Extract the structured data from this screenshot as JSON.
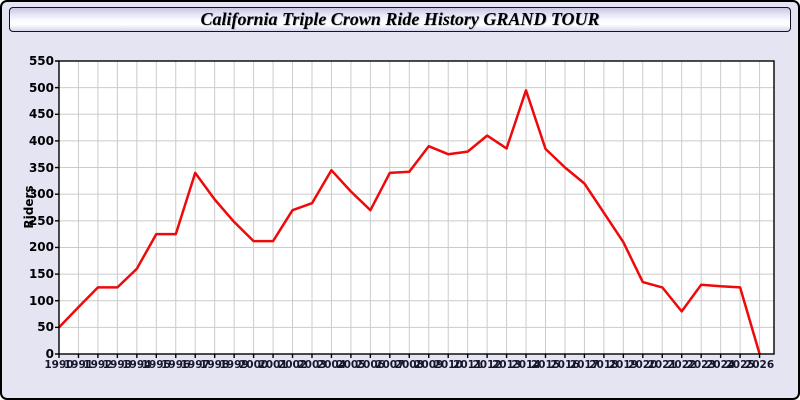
{
  "window": {
    "background": "#e4e4f3",
    "border_color": "#000000"
  },
  "chart_data": {
    "type": "line",
    "title": "California Triple Crown Ride History GRAND TOUR",
    "ylabel": "Riders",
    "xlabel": "",
    "x": [
      1990,
      1991,
      1992,
      1993,
      1994,
      1995,
      1996,
      1997,
      1998,
      1999,
      2000,
      2001,
      2002,
      2003,
      2004,
      2005,
      2006,
      2007,
      2008,
      2009,
      2010,
      2011,
      2012,
      2013,
      2014,
      2015,
      2016,
      2017,
      2018,
      2019,
      2020,
      2021,
      2022,
      2023,
      2024,
      2025,
      2026
    ],
    "values": [
      50,
      88,
      125,
      125,
      160,
      225,
      225,
      340,
      290,
      248,
      212,
      212,
      270,
      283,
      345,
      305,
      270,
      340,
      342,
      390,
      375,
      380,
      410,
      386,
      495,
      385,
      350,
      320,
      265,
      210,
      135,
      125,
      80,
      130,
      127,
      125,
      0
    ],
    "ylim": [
      0,
      550
    ],
    "ytick_step": 50,
    "grid": true,
    "legend": "none",
    "line_color": "#ee0a0a",
    "grid_color": "#cbcbcb",
    "plot_bg": "#ffffff",
    "axis_color": "#000000"
  }
}
